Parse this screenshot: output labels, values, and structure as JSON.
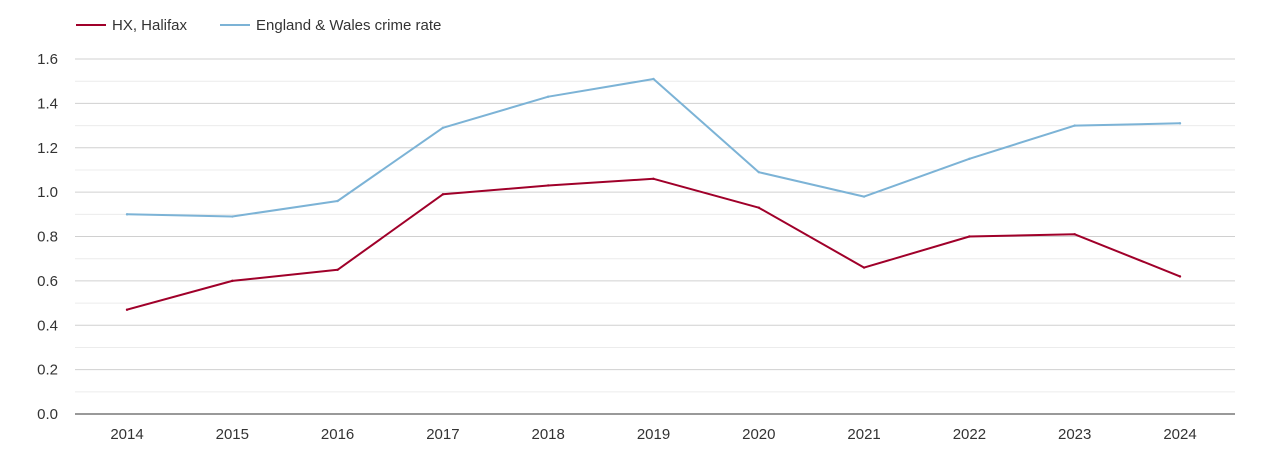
{
  "chart_data": {
    "type": "line",
    "title": "",
    "xlabel": "",
    "ylabel": "",
    "categories": [
      "2014",
      "2015",
      "2016",
      "2017",
      "2018",
      "2019",
      "2020",
      "2021",
      "2022",
      "2023",
      "2024"
    ],
    "ylim": [
      0,
      1.6
    ],
    "yticks": [
      "0.0",
      "0.2",
      "0.4",
      "0.6",
      "0.8",
      "1.0",
      "1.2",
      "1.4",
      "1.6"
    ],
    "grid": true,
    "legend_position": "top-left",
    "series": [
      {
        "name": "HX, Halifax",
        "color": "#a0002a",
        "values": [
          0.47,
          0.6,
          0.65,
          0.99,
          1.03,
          1.06,
          0.93,
          0.66,
          0.8,
          0.81,
          0.62
        ]
      },
      {
        "name": "England & Wales crime rate",
        "color": "#7cb3d6",
        "values": [
          0.9,
          0.89,
          0.96,
          1.29,
          1.43,
          1.51,
          1.09,
          0.98,
          1.15,
          1.3,
          1.31
        ]
      }
    ]
  }
}
